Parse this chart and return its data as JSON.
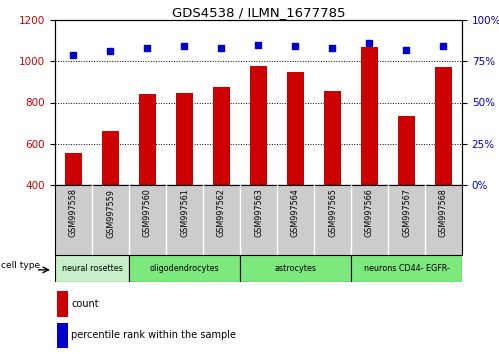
{
  "title": "GDS4538 / ILMN_1677785",
  "samples": [
    "GSM997558",
    "GSM997559",
    "GSM997560",
    "GSM997561",
    "GSM997562",
    "GSM997563",
    "GSM997564",
    "GSM997565",
    "GSM997566",
    "GSM997567",
    "GSM997568"
  ],
  "counts": [
    555,
    660,
    840,
    845,
    875,
    978,
    950,
    855,
    1070,
    735,
    970
  ],
  "percentiles": [
    79,
    81,
    83,
    84,
    83,
    85,
    84,
    83,
    86,
    82,
    84
  ],
  "cell_types": [
    {
      "label": "neural rosettes",
      "start": 0,
      "end": 2,
      "color": "#c8f0c8"
    },
    {
      "label": "oligodendrocytes",
      "start": 2,
      "end": 5,
      "color": "#7de87d"
    },
    {
      "label": "astrocytes",
      "start": 5,
      "end": 8,
      "color": "#7de87d"
    },
    {
      "label": "neurons CD44- EGFR-",
      "start": 8,
      "end": 11,
      "color": "#7de87d"
    }
  ],
  "ylim_left": [
    400,
    1200
  ],
  "ylim_right": [
    0,
    100
  ],
  "bar_color": "#cc0000",
  "scatter_color": "#0000cc",
  "tick_bg": "#cccccc",
  "figsize": [
    4.99,
    3.54
  ],
  "dpi": 100
}
